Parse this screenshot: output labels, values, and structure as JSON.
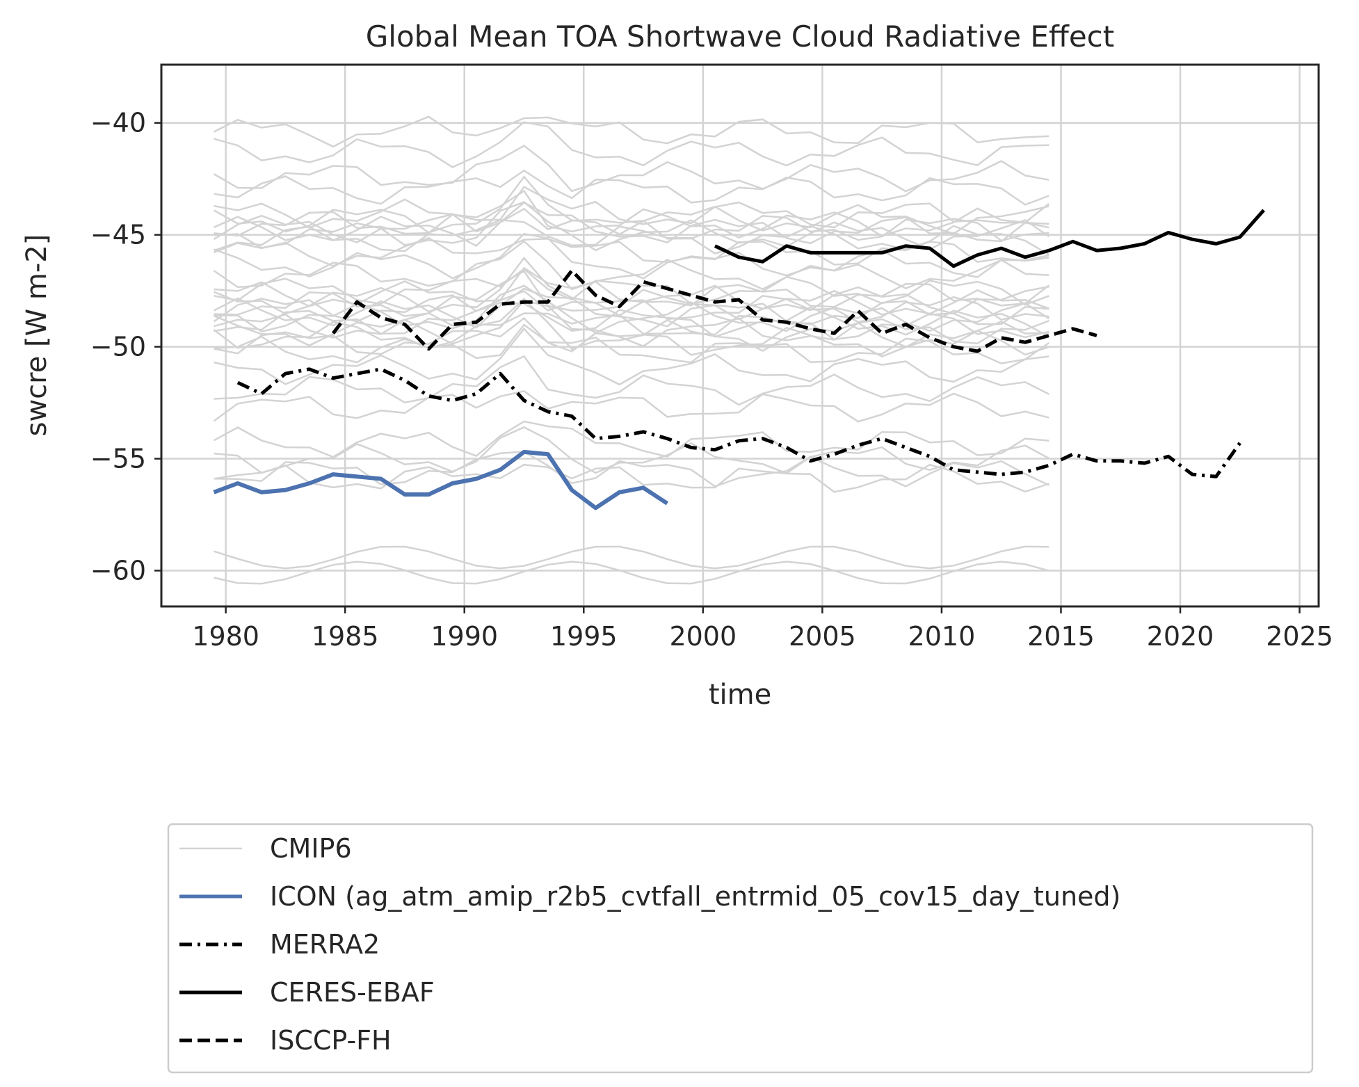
{
  "chart_data": {
    "type": "line",
    "title": "Global Mean TOA Shortwave Cloud Radiative Effect",
    "xlabel": "time",
    "ylabel": "swcre [W m-2]",
    "xlim": [
      1977.3,
      2025.8
    ],
    "ylim": [
      -61.6,
      -37.4
    ],
    "xticks": [
      1980,
      1985,
      1990,
      1995,
      2000,
      2005,
      2010,
      2015,
      2020,
      2025
    ],
    "yticks": [
      -60,
      -55,
      -50,
      -45,
      -40
    ],
    "ytick_labels": [
      "−60",
      "−55",
      "−50",
      "−45",
      "−40"
    ],
    "grid": true,
    "legend_position": "below",
    "colors": {
      "cmip6": "#d3d3d3",
      "icon": "#4c72b0",
      "obs": "#000000",
      "axes": "#262626",
      "grid": "#d3d3d3"
    },
    "series": [
      {
        "name": "ICON (ag_atm_amip_r2b5_cvtfall_entrmid_05_cov15_day_tuned)",
        "style": "solid",
        "color": "#4c72b0",
        "x": [
          1979.5,
          1980.5,
          1981.5,
          1982.5,
          1983.5,
          1984.5,
          1985.5,
          1986.5,
          1987.5,
          1988.5,
          1989.5,
          1990.5,
          1991.5,
          1992.5,
          1993.5,
          1994.5,
          1995.5,
          1996.5,
          1997.5,
          1998.5
        ],
        "y": [
          -56.5,
          -56.1,
          -56.5,
          -56.4,
          -56.1,
          -55.7,
          -55.8,
          -55.9,
          -56.6,
          -56.6,
          -56.1,
          -55.9,
          -55.5,
          -54.7,
          -54.8,
          -56.4,
          -57.2,
          -56.5,
          -56.3,
          -57.0
        ]
      },
      {
        "name": "MERRA2",
        "style": "dashdot",
        "color": "#000000",
        "x": [
          1980.5,
          1981.5,
          1982.5,
          1983.5,
          1984.5,
          1985.5,
          1986.5,
          1987.5,
          1988.5,
          1989.5,
          1990.5,
          1991.5,
          1992.5,
          1993.5,
          1994.5,
          1995.5,
          1996.5,
          1997.5,
          1998.5,
          1999.5,
          2000.5,
          2001.5,
          2002.5,
          2003.5,
          2004.5,
          2005.5,
          2006.5,
          2007.5,
          2008.5,
          2009.5,
          2010.5,
          2011.5,
          2012.5,
          2013.5,
          2014.5,
          2015.5,
          2016.5,
          2017.5,
          2018.5,
          2019.5,
          2020.5,
          2021.5,
          2022.5
        ],
        "y": [
          -51.6,
          -52.1,
          -51.2,
          -51.0,
          -51.4,
          -51.2,
          -51.0,
          -51.5,
          -52.2,
          -52.4,
          -52.1,
          -51.2,
          -52.4,
          -52.9,
          -53.1,
          -54.1,
          -54.0,
          -53.8,
          -54.1,
          -54.5,
          -54.6,
          -54.2,
          -54.1,
          -54.5,
          -55.1,
          -54.8,
          -54.4,
          -54.1,
          -54.5,
          -54.9,
          -55.5,
          -55.6,
          -55.7,
          -55.6,
          -55.3,
          -54.8,
          -55.1,
          -55.1,
          -55.2,
          -54.9,
          -55.7,
          -55.8,
          -54.3
        ]
      },
      {
        "name": "CERES-EBAF",
        "style": "solid",
        "color": "#000000",
        "x": [
          2000.5,
          2001.5,
          2002.5,
          2003.5,
          2004.5,
          2005.5,
          2006.5,
          2007.5,
          2008.5,
          2009.5,
          2010.5,
          2011.5,
          2012.5,
          2013.5,
          2014.5,
          2015.5,
          2016.5,
          2017.5,
          2018.5,
          2019.5,
          2020.5,
          2021.5,
          2022.5,
          2023.5
        ],
        "y": [
          -45.5,
          -46.0,
          -46.2,
          -45.5,
          -45.8,
          -45.8,
          -45.8,
          -45.8,
          -45.5,
          -45.6,
          -46.4,
          -45.9,
          -45.6,
          -46.0,
          -45.7,
          -45.3,
          -45.7,
          -45.6,
          -45.4,
          -44.9,
          -45.2,
          -45.4,
          -45.1,
          -43.9
        ]
      },
      {
        "name": "ISCCP-FH",
        "style": "dashed",
        "color": "#000000",
        "x": [
          1984.5,
          1985.5,
          1986.5,
          1987.5,
          1988.5,
          1989.5,
          1990.5,
          1991.5,
          1992.5,
          1993.5,
          1994.5,
          1995.5,
          1996.5,
          1997.5,
          1998.5,
          1999.5,
          2000.5,
          2001.5,
          2002.5,
          2003.5,
          2004.5,
          2005.5,
          2006.5,
          2007.5,
          2008.5,
          2009.5,
          2010.5,
          2011.5,
          2012.5,
          2013.5,
          2014.5,
          2015.5,
          2016.5
        ],
        "y": [
          -49.4,
          -48.0,
          -48.7,
          -49.0,
          -50.1,
          -49.0,
          -48.9,
          -48.1,
          -48.0,
          -48.0,
          -46.6,
          -47.7,
          -48.2,
          -47.1,
          -47.4,
          -47.7,
          -48.0,
          -47.9,
          -48.8,
          -48.9,
          -49.2,
          -49.4,
          -48.4,
          -49.4,
          -49.0,
          -49.6,
          -50.0,
          -50.2,
          -49.6,
          -49.8,
          -49.5,
          -49.2,
          -49.5
        ]
      }
    ],
    "cmip6": {
      "name": "CMIP6",
      "style": "solid",
      "color": "#d3d3d3",
      "x_start": 1979.5,
      "x_end": 2014.5,
      "n_years": 36,
      "baselines": [
        -40.4,
        -41.3,
        -42.4,
        -43.0,
        -44.1,
        -44.3,
        -44.5,
        -44.7,
        -44.8,
        -45.0,
        -45.2,
        -45.8,
        -46.3,
        -46.8,
        -47.5,
        -47.7,
        -47.9,
        -48.1,
        -48.3,
        -48.5,
        -48.7,
        -48.9,
        -49.1,
        -49.3,
        -49.5,
        -49.8,
        -50.2,
        -51.0,
        -51.9,
        -52.7,
        -54.3,
        -55.0,
        -55.6,
        -55.9,
        -59.4,
        -60.1
      ]
    }
  },
  "legend": {
    "items": [
      {
        "label": "CMIP6",
        "style": "solid",
        "color": "#d3d3d3"
      },
      {
        "label": "ICON (ag_atm_amip_r2b5_cvtfall_entrmid_05_cov15_day_tuned)",
        "style": "solid",
        "color": "#4c72b0"
      },
      {
        "label": "MERRA2",
        "style": "dashdot",
        "color": "#000000"
      },
      {
        "label": "CERES-EBAF",
        "style": "solid",
        "color": "#000000"
      },
      {
        "label": "ISCCP-FH",
        "style": "dashed",
        "color": "#000000"
      }
    ]
  }
}
